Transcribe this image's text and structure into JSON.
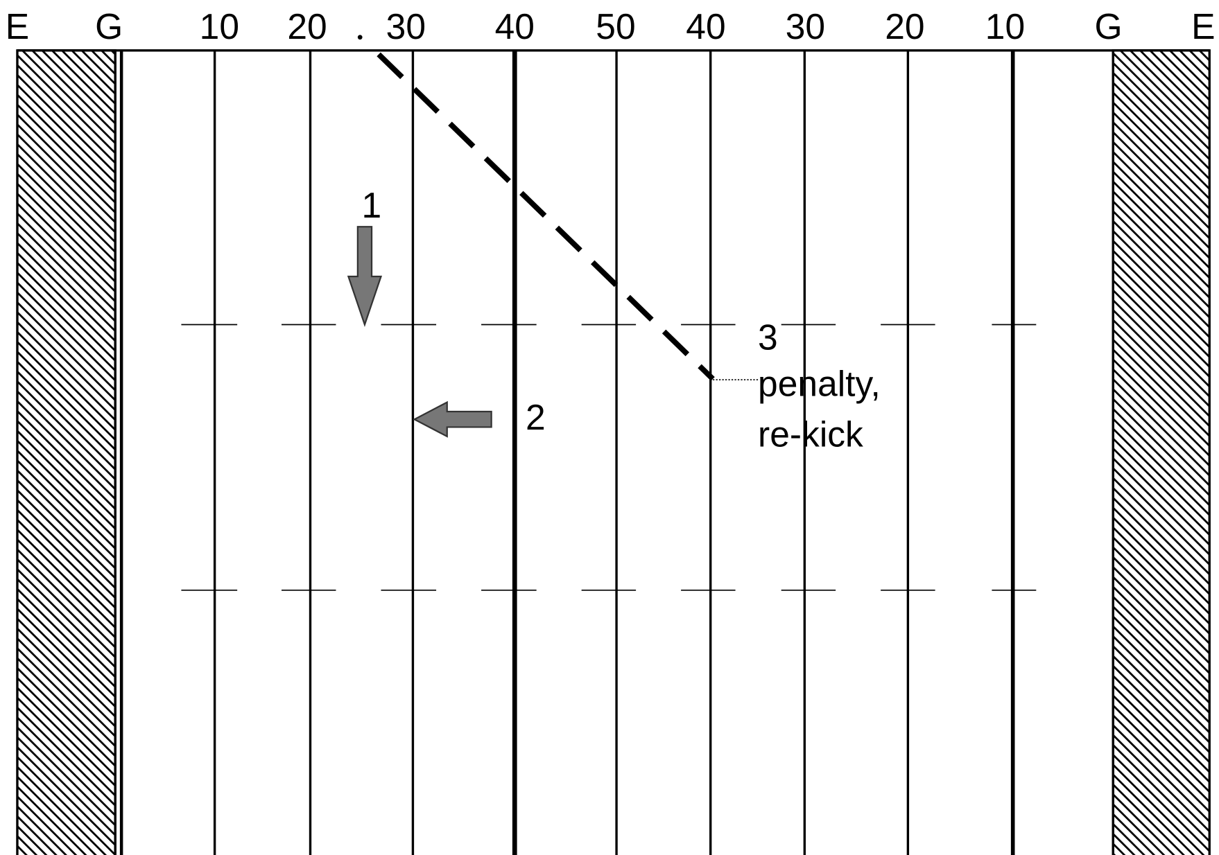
{
  "field": {
    "yard_labels": [
      "E",
      "G",
      "10",
      "20",
      "30",
      "40",
      "50",
      "40",
      "30",
      "20",
      "10",
      "G",
      "E"
    ]
  },
  "annotations": {
    "one": "1",
    "two": "2",
    "three": "3",
    "penalty_line1": "penalty,",
    "penalty_line2": "re-kick"
  }
}
